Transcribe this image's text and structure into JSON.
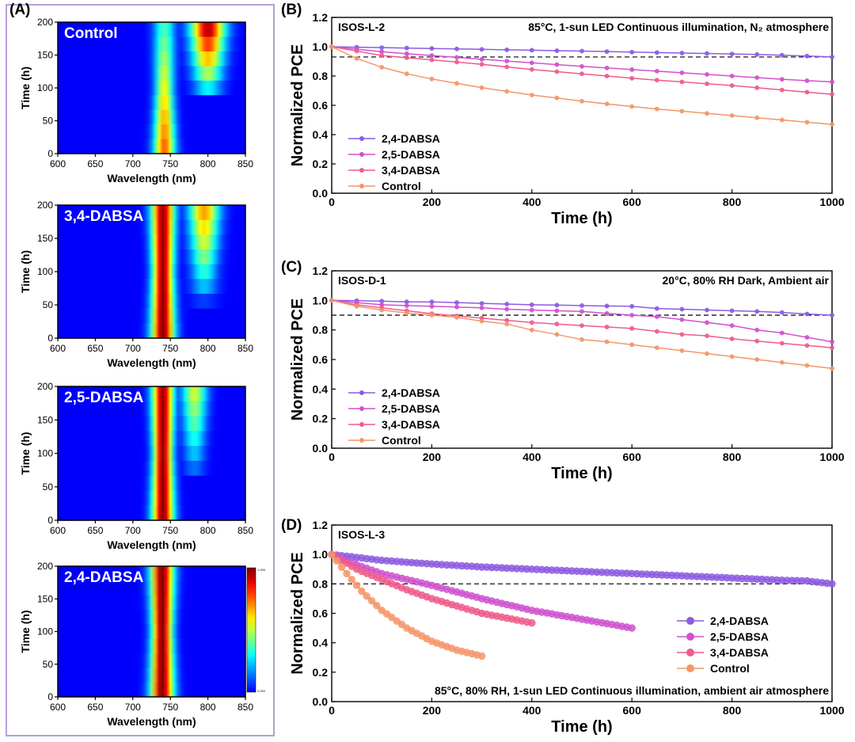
{
  "panel_labels": {
    "a": "(A)",
    "b": "(B)",
    "c": "(C)",
    "d": "(D)"
  },
  "colors": {
    "2,4-DABSA": "#8c5ce0",
    "2,5-DABSA": "#cf52cf",
    "3,4-DABSA": "#ee5c8c",
    "Control": "#f4966a",
    "frame": "#b79fd8",
    "reference_line": "#000000"
  },
  "chart_data": [
    {
      "id": "A1",
      "type": "heatmap",
      "title": "Control",
      "xlabel": "Wavelength (nm)",
      "ylabel": "Time (h)",
      "xlim": [
        600,
        850
      ],
      "ylim": [
        0,
        200
      ],
      "xticks": [
        600,
        650,
        700,
        750,
        800,
        850
      ],
      "yticks": [
        0,
        50,
        100,
        150,
        200
      ],
      "ridges": [
        {
          "center_nm": 742,
          "width_nm": 12,
          "intensity_at_0h": 0.78,
          "intensity_at_200h": 0.35
        },
        {
          "center_nm": 800,
          "width_nm": 19,
          "intensity_at_0h": 0.0,
          "intensity_at_200h": 1.0,
          "onset_h": 80
        }
      ]
    },
    {
      "id": "A2",
      "type": "heatmap",
      "title": "3,4-DABSA",
      "xlabel": "Wavelength (nm)",
      "ylabel": "Time (h)",
      "xlim": [
        600,
        850
      ],
      "ylim": [
        0,
        200
      ],
      "xticks": [
        600,
        650,
        700,
        750,
        800,
        850
      ],
      "yticks": [
        0,
        50,
        100,
        150,
        200
      ],
      "ridges": [
        {
          "center_nm": 740,
          "width_nm": 13,
          "intensity_at_0h": 1.0,
          "intensity_at_200h": 0.97
        },
        {
          "center_nm": 795,
          "width_nm": 17,
          "intensity_at_0h": 0.0,
          "intensity_at_200h": 0.72,
          "onset_h": 50
        }
      ]
    },
    {
      "id": "A3",
      "type": "heatmap",
      "title": "2,5-DABSA",
      "xlabel": "Wavelength (nm)",
      "ylabel": "Time (h)",
      "xlim": [
        600,
        850
      ],
      "ylim": [
        0,
        200
      ],
      "xticks": [
        600,
        650,
        700,
        750,
        800,
        850
      ],
      "yticks": [
        0,
        50,
        100,
        150,
        200
      ],
      "ridges": [
        {
          "center_nm": 740,
          "width_nm": 12,
          "intensity_at_0h": 1.0,
          "intensity_at_200h": 0.98
        },
        {
          "center_nm": 782,
          "width_nm": 14,
          "intensity_at_0h": 0.0,
          "intensity_at_200h": 0.55,
          "onset_h": 60
        }
      ]
    },
    {
      "id": "A4",
      "type": "heatmap",
      "title": "2,4-DABSA",
      "xlabel": "Wavelength (nm)",
      "ylabel": "Time (h)",
      "xlim": [
        600,
        850
      ],
      "ylim": [
        0,
        200
      ],
      "xticks": [
        600,
        650,
        700,
        750,
        800,
        850
      ],
      "yticks": [
        0,
        50,
        100,
        150,
        200
      ],
      "colorbar": {
        "max_label": "1.000",
        "min_label": "0.000"
      },
      "ridges": [
        {
          "center_nm": 739,
          "width_nm": 13,
          "intensity_at_0h": 1.0,
          "intensity_at_200h": 1.0
        }
      ]
    },
    {
      "id": "B",
      "type": "line",
      "title": "ISOS-L-2",
      "annotation": "85°C, 1-sun LED Continuous illumination, N₂ atmosphere",
      "xlabel": "Time (h)",
      "ylabel": "Normalized PCE",
      "xlim": [
        0,
        1000
      ],
      "ylim": [
        0,
        1.2
      ],
      "xticks": [
        0,
        200,
        400,
        600,
        800,
        1000
      ],
      "yticks": [
        0.0,
        0.2,
        0.4,
        0.6,
        0.8,
        1.0,
        1.2
      ],
      "reference_line": 0.93,
      "legend_position": "bottom-left",
      "x": [
        0,
        50,
        100,
        150,
        200,
        250,
        300,
        350,
        400,
        450,
        500,
        550,
        600,
        650,
        700,
        750,
        800,
        850,
        900,
        950,
        1000
      ],
      "series": [
        {
          "name": "2,4-DABSA",
          "values": [
            1.0,
            0.997,
            0.994,
            0.991,
            0.988,
            0.985,
            0.982,
            0.979,
            0.976,
            0.973,
            0.97,
            0.967,
            0.963,
            0.96,
            0.957,
            0.954,
            0.951,
            0.947,
            0.942,
            0.936,
            0.93
          ]
        },
        {
          "name": "2,5-DABSA",
          "values": [
            1.0,
            0.983,
            0.966,
            0.952,
            0.94,
            0.927,
            0.914,
            0.902,
            0.89,
            0.878,
            0.866,
            0.855,
            0.844,
            0.833,
            0.822,
            0.811,
            0.8,
            0.789,
            0.778,
            0.768,
            0.76
          ]
        },
        {
          "name": "3,4-DABSA",
          "values": [
            1.0,
            0.97,
            0.94,
            0.925,
            0.91,
            0.895,
            0.88,
            0.862,
            0.845,
            0.83,
            0.815,
            0.8,
            0.785,
            0.772,
            0.76,
            0.747,
            0.735,
            0.72,
            0.705,
            0.69,
            0.675
          ]
        },
        {
          "name": "Control",
          "values": [
            1.0,
            0.92,
            0.86,
            0.815,
            0.78,
            0.75,
            0.72,
            0.695,
            0.67,
            0.65,
            0.628,
            0.61,
            0.592,
            0.575,
            0.56,
            0.545,
            0.53,
            0.515,
            0.5,
            0.485,
            0.47
          ]
        }
      ]
    },
    {
      "id": "C",
      "type": "line",
      "title": "ISOS-D-1",
      "annotation": "20°C, 80% RH Dark, Ambient air",
      "xlabel": "Time (h)",
      "ylabel": "Normalized PCE",
      "xlim": [
        0,
        1000
      ],
      "ylim": [
        0,
        1.2
      ],
      "xticks": [
        0,
        200,
        400,
        600,
        800,
        1000
      ],
      "yticks": [
        0.0,
        0.2,
        0.4,
        0.6,
        0.8,
        1.0,
        1.2
      ],
      "reference_line": 0.9,
      "legend_position": "bottom-left",
      "x": [
        0,
        50,
        100,
        150,
        200,
        250,
        300,
        350,
        400,
        450,
        500,
        550,
        600,
        650,
        700,
        750,
        800,
        850,
        900,
        950,
        1000
      ],
      "series": [
        {
          "name": "2,4-DABSA",
          "values": [
            1.0,
            0.998,
            0.995,
            0.99,
            0.99,
            0.985,
            0.98,
            0.975,
            0.97,
            0.968,
            0.965,
            0.962,
            0.96,
            0.945,
            0.94,
            0.935,
            0.93,
            0.925,
            0.918,
            0.908,
            0.9
          ]
        },
        {
          "name": "2,5-DABSA",
          "values": [
            1.0,
            0.985,
            0.97,
            0.965,
            0.96,
            0.955,
            0.95,
            0.94,
            0.935,
            0.93,
            0.925,
            0.912,
            0.9,
            0.89,
            0.87,
            0.85,
            0.83,
            0.8,
            0.78,
            0.75,
            0.72
          ]
        },
        {
          "name": "3,4-DABSA",
          "values": [
            1.0,
            0.97,
            0.95,
            0.93,
            0.91,
            0.895,
            0.88,
            0.865,
            0.85,
            0.84,
            0.83,
            0.82,
            0.81,
            0.79,
            0.77,
            0.76,
            0.74,
            0.725,
            0.71,
            0.695,
            0.68
          ]
        },
        {
          "name": "Control",
          "values": [
            1.0,
            0.96,
            0.935,
            0.915,
            0.9,
            0.885,
            0.86,
            0.84,
            0.8,
            0.77,
            0.735,
            0.72,
            0.7,
            0.68,
            0.66,
            0.64,
            0.62,
            0.6,
            0.58,
            0.56,
            0.54
          ]
        }
      ]
    },
    {
      "id": "D",
      "type": "line",
      "title": "ISOS-L-3",
      "annotation": "85°C, 80% RH, 1-sun LED Continuous illumination, ambient air atmosphere",
      "xlabel": "Time (h)",
      "ylabel": "Normalized PCE",
      "xlim": [
        0,
        1000
      ],
      "ylim": [
        0,
        1.2
      ],
      "xticks": [
        0,
        200,
        400,
        600,
        800,
        1000
      ],
      "yticks": [
        0.0,
        0.2,
        0.4,
        0.6,
        0.8,
        1.0,
        1.2
      ],
      "reference_line": 0.8,
      "legend_position": "bottom-right",
      "series": [
        {
          "name": "2,4-DABSA",
          "x": [
            0,
            100,
            200,
            300,
            400,
            500,
            600,
            700,
            800,
            900,
            950,
            1000
          ],
          "values": [
            1.0,
            0.96,
            0.935,
            0.915,
            0.9,
            0.885,
            0.87,
            0.855,
            0.84,
            0.825,
            0.82,
            0.8
          ]
        },
        {
          "name": "2,5-DABSA",
          "x": [
            0,
            50,
            100,
            200,
            300,
            400,
            500,
            600
          ],
          "values": [
            1.0,
            0.93,
            0.87,
            0.79,
            0.7,
            0.62,
            0.56,
            0.5
          ]
        },
        {
          "name": "3,4-DABSA",
          "x": [
            0,
            50,
            100,
            150,
            200,
            300,
            400
          ],
          "values": [
            1.0,
            0.9,
            0.83,
            0.76,
            0.7,
            0.6,
            0.535
          ]
        },
        {
          "name": "Control",
          "x": [
            0,
            30,
            60,
            100,
            150,
            200,
            250,
            300
          ],
          "values": [
            1.0,
            0.87,
            0.75,
            0.62,
            0.5,
            0.41,
            0.35,
            0.31
          ]
        }
      ]
    }
  ]
}
